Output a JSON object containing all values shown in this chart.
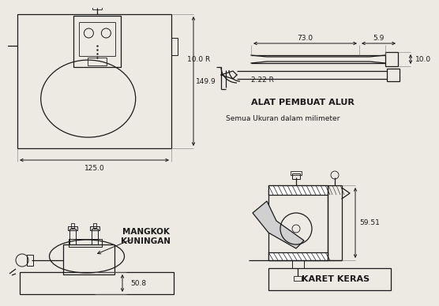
{
  "bg_color": "#ede9e3",
  "line_color": "#1a1a1a",
  "title1": "ALAT PEMBUAT ALUR",
  "title2": "Semua Ukuran dalam milimeter",
  "label_mangkok": "MANGKOK\nKUNINGAN",
  "label_karet": "KARET KERAS",
  "dim_149": "149.9",
  "dim_125": "125.0",
  "dim_73": "73.0",
  "dim_59": "5.9",
  "dim_10R": "10.0 R",
  "dim_222R": "2.22 R",
  "dim_10": "10.0",
  "dim_5951": "59.51",
  "dim_508": "50.8"
}
